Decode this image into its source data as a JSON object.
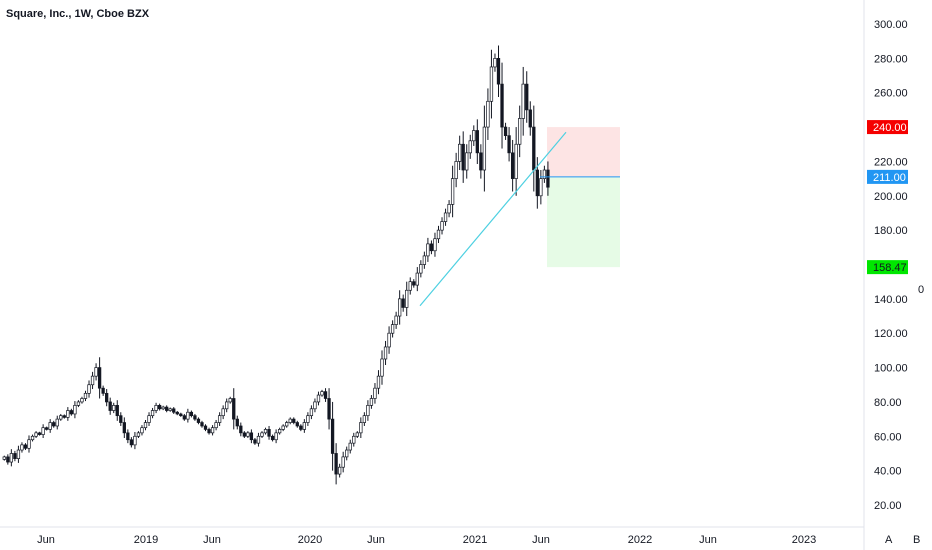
{
  "header": {
    "title": "Square, Inc., 1W, Cboe BZX"
  },
  "toolbar": {
    "auto_label": "A",
    "bar_label": "B"
  },
  "right_indicator": {
    "value_label": "0"
  },
  "colors": {
    "up_candle": "#ffffff",
    "down_candle": "#131722",
    "trendline": "#4dd0e1",
    "entry_line": "#2196f3",
    "stop_zone": "#fde4e4",
    "target_zone": "#e6fbe6",
    "stop_badge": "#f50000",
    "entry_badge": "#2196f3",
    "target_badge": "#00e600"
  },
  "chart_data": {
    "type": "candlestick",
    "title": "Square, Inc., 1W, Cboe BZX",
    "ylim": [
      5,
      310
    ],
    "y_ticks": [
      "20.00",
      "40.00",
      "60.00",
      "80.00",
      "100.00",
      "120.00",
      "140.00",
      "160.00",
      "180.00",
      "200.00",
      "220.00",
      "240.00",
      "260.00",
      "280.00",
      "300.00"
    ],
    "x_ticks": [
      "Jun",
      "2019",
      "Jun",
      "2020",
      "Jun",
      "2021",
      "Jun",
      "2022",
      "Jun",
      "2023"
    ],
    "price_labels": [
      {
        "name": "stop",
        "value": "240.00"
      },
      {
        "name": "entry",
        "value": "211.00"
      },
      {
        "name": "target",
        "value": "158.47"
      }
    ],
    "entry": 211.0,
    "stop": 240.0,
    "target": 158.47,
    "trendline": {
      "from": [
        20200916,
        136
      ],
      "to": [
        20210806,
        237
      ]
    },
    "grid": false,
    "candles_close": [
      48,
      45,
      50,
      47,
      52,
      55,
      53,
      58,
      60,
      62,
      61,
      65,
      64,
      68,
      66,
      70,
      72,
      71,
      75,
      73,
      78,
      80,
      82,
      85,
      90,
      95,
      100,
      88,
      85,
      80,
      75,
      78,
      72,
      68,
      62,
      58,
      55,
      60,
      62,
      65,
      68,
      72,
      75,
      78,
      76,
      77,
      75,
      76,
      74,
      73,
      72,
      70,
      74,
      72,
      70,
      68,
      66,
      64,
      62,
      65,
      68,
      72,
      76,
      80,
      82,
      70,
      66,
      62,
      60,
      62,
      58,
      56,
      60,
      62,
      64,
      60,
      58,
      62,
      64,
      66,
      68,
      70,
      68,
      66,
      64,
      68,
      72,
      76,
      80,
      84,
      86,
      82,
      70,
      50,
      38,
      42,
      48,
      52,
      56,
      60,
      62,
      68,
      72,
      78,
      82,
      88,
      95,
      105,
      112,
      120,
      125,
      130,
      140,
      135,
      145,
      150,
      148,
      155,
      160,
      165,
      172,
      168,
      175,
      180,
      185,
      190,
      195,
      210,
      220,
      230,
      215,
      225,
      232,
      238,
      225,
      215,
      240,
      255,
      275,
      280,
      265,
      240,
      235,
      225,
      210,
      230,
      245,
      265,
      250,
      240,
      215,
      200,
      210,
      215,
      205
    ]
  }
}
